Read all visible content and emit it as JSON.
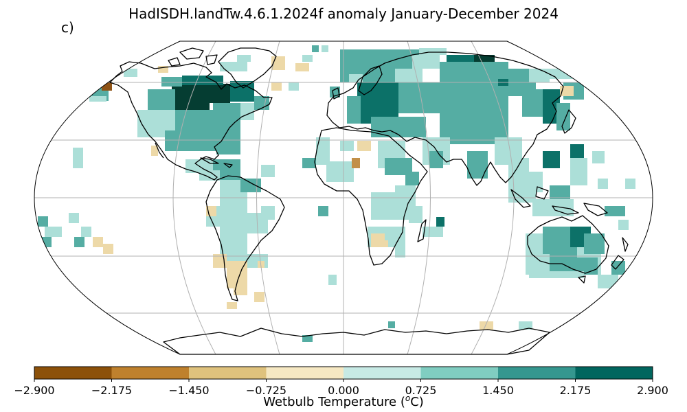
{
  "title": "HadISDH.landTw.4.6.1.2024f anomaly January-December 2024",
  "panel_label": "c)",
  "colorbar": {
    "label_prefix": "Wetbulb Temperature (",
    "label_sup": "o",
    "label_suffix": "C)",
    "ticks": [
      "−2.900",
      "−2.175",
      "−1.450",
      "−0.725",
      "0.000",
      "0.725",
      "1.450",
      "2.175",
      "2.900"
    ],
    "colors": [
      "#543005",
      "#8c510a",
      "#bf812d",
      "#dfc27d",
      "#f6e8c3",
      "#c7eae5",
      "#80cdc1",
      "#35978f",
      "#01665e",
      "#003c30"
    ]
  },
  "map": {
    "projection": "Robinson",
    "colors": {
      "coast": "#000000",
      "grid": "#b0b0b0",
      "bin_-4": "#4d2a07",
      "bin_-3": "#8e5316",
      "bin_-2": "#c28f48",
      "bin_-1": "#edd9a8",
      "bin_1": "#acdfd8",
      "bin_2": "#55ada3",
      "bin_3": "#0c7168",
      "bin_4": "#053d32"
    }
  }
}
